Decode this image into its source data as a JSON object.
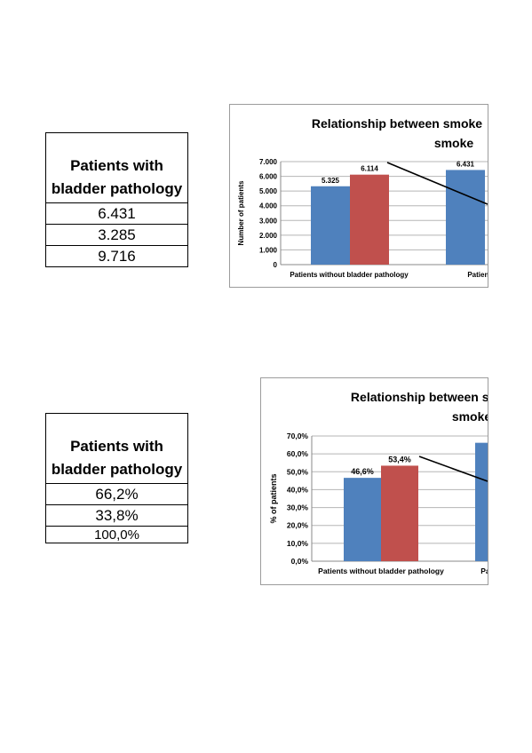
{
  "table1": {
    "header": "Patients with bladder pathology",
    "header_lines": [
      "Patients with",
      "bladder pathology"
    ],
    "rows": [
      "6.431",
      "3.285",
      "9.716"
    ]
  },
  "table2": {
    "header": "Patients with bladder pathology",
    "header_lines": [
      "Patients with",
      "bladder pathology"
    ],
    "rows": [
      "66,2%",
      "33,8%",
      "100,0%"
    ]
  },
  "chart_data": [
    {
      "type": "bar",
      "title": "Relationship between smoke smoke",
      "title_lines": [
        "Relationship between smoke",
        "smoke"
      ],
      "ylabel": "Number of patients",
      "xlabel": "",
      "categories": [
        "Patients without bladder pathology",
        "Patients with"
      ],
      "series": [
        {
          "values": [
            5325,
            6431
          ],
          "color": "#4f81bd"
        },
        {
          "values": [
            6114,
            null
          ],
          "color": "#c0504d"
        }
      ],
      "data_labels": [
        [
          "5.325",
          "6.431"
        ],
        [
          "6.114",
          ""
        ]
      ],
      "ylim": [
        0,
        7000
      ],
      "yticks": [
        0,
        1000,
        2000,
        3000,
        4000,
        5000,
        6000,
        7000
      ],
      "ytick_labels": [
        "0",
        "1.000",
        "2.000",
        "3.000",
        "4.000",
        "5.000",
        "6.000",
        "7.000"
      ],
      "grid": true
    },
    {
      "type": "bar",
      "title": "Relationship between sn smoke",
      "title_lines": [
        "Relationship between sn",
        "smoke"
      ],
      "ylabel": "% of patients",
      "xlabel": "",
      "categories": [
        "Patients without bladder pathology",
        "Patien"
      ],
      "series": [
        {
          "values": [
            46.6,
            66.2
          ],
          "color": "#4f81bd"
        },
        {
          "values": [
            53.4,
            null
          ],
          "color": "#c0504d"
        }
      ],
      "data_labels": [
        [
          "46,6%",
          ""
        ],
        [
          "53,4%",
          ""
        ]
      ],
      "ylim": [
        0,
        70
      ],
      "yticks": [
        0,
        10,
        20,
        30,
        40,
        50,
        60,
        70
      ],
      "ytick_labels": [
        "0,0%",
        "10,0%",
        "20,0%",
        "30,0%",
        "40,0%",
        "50,0%",
        "60,0%",
        "70,0%"
      ],
      "grid": true
    }
  ]
}
